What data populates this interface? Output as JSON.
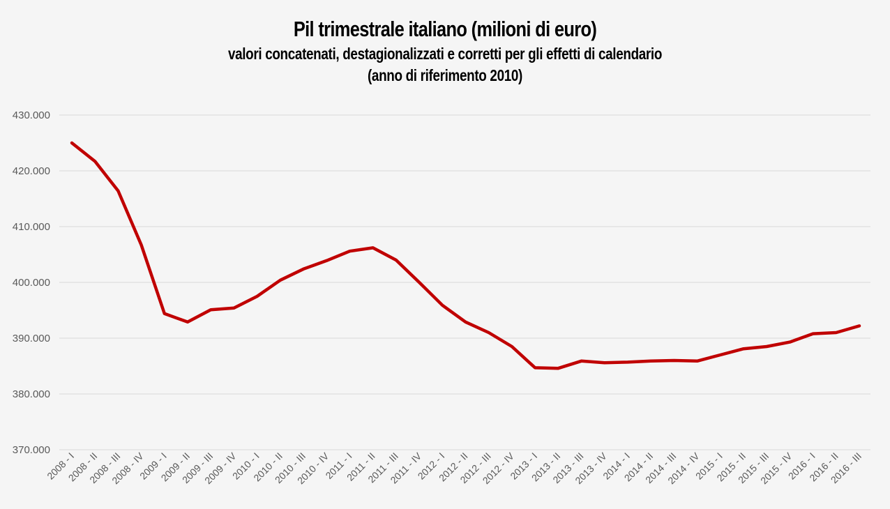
{
  "chart_data": {
    "type": "line",
    "title": "Pil trimestrale italiano (milioni di euro)",
    "subtitle": "valori concatenati, destagionalizzati e corretti per gli effetti di calendario",
    "subtitle2": "(anno di riferimento 2010)",
    "xlabel": "",
    "ylabel": "",
    "ylim": [
      370000,
      430000
    ],
    "yticks": [
      "370.000",
      "380.000",
      "390.000",
      "400.000",
      "410.000",
      "420.000",
      "430.000"
    ],
    "grid": true,
    "legend": "none",
    "categories": [
      "2008 - I",
      "2008 - II",
      "2008 - III",
      "2008 - IV",
      "2009 - I",
      "2009 - II",
      "2009 - III",
      "2009 - IV",
      "2010 - I",
      "2010 - II",
      "2010 - III",
      "2010 - IV",
      "2011 - I",
      "2011 - II",
      "2011 - III",
      "2011 - IV",
      "2012 - I",
      "2012 - II",
      "2012 - III",
      "2012 - IV",
      "2013 - I",
      "2013 - II",
      "2013 - III",
      "2013 - IV",
      "2014 - I",
      "2014 - II",
      "2014 - III",
      "2014 - IV",
      "2015 - I",
      "2015 - II",
      "2015 - III",
      "2015 - IV",
      "2016 - I",
      "2016 - II",
      "2016 - III"
    ],
    "series": [
      {
        "color": "#c00000",
        "values": [
          425000,
          421700,
          416400,
          406700,
          394400,
          392900,
          395100,
          395400,
          397500,
          400400,
          402400,
          403900,
          405600,
          406200,
          404000,
          400000,
          395900,
          392900,
          391000,
          388500,
          384700,
          384600,
          385900,
          385600,
          385700,
          385900,
          386000,
          385900,
          387000,
          388100,
          388500,
          389300,
          390800,
          391000,
          392200
        ]
      }
    ],
    "colors": {
      "background": "#f5f5f5",
      "grid": "#d9d9d9",
      "line": "#c00000",
      "tick_text": "#595959"
    }
  }
}
